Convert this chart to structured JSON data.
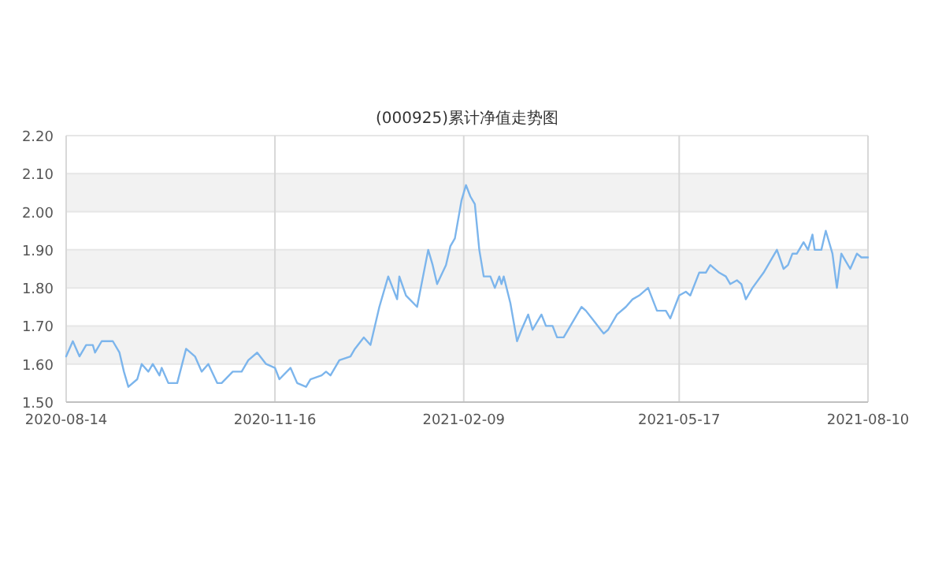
{
  "chart_data": {
    "type": "line",
    "title": "(000925)累计净值走势图",
    "x": [
      "2020-08-14",
      "2020-08-17",
      "2020-08-20",
      "2020-08-23",
      "2020-08-26",
      "2020-08-27",
      "2020-08-30",
      "2020-09-02",
      "2020-09-04",
      "2020-09-07",
      "2020-09-09",
      "2020-09-11",
      "2020-09-15",
      "2020-09-17",
      "2020-09-20",
      "2020-09-22",
      "2020-09-25",
      "2020-09-26",
      "2020-09-29",
      "2020-10-03",
      "2020-10-07",
      "2020-10-11",
      "2020-10-14",
      "2020-10-17",
      "2020-10-21",
      "2020-10-23",
      "2020-10-28",
      "2020-11-01",
      "2020-11-04",
      "2020-11-08",
      "2020-11-12",
      "2020-11-16",
      "2020-11-18",
      "2020-11-23",
      "2020-11-26",
      "2020-11-30",
      "2020-12-02",
      "2020-12-07",
      "2020-12-09",
      "2020-12-11",
      "2020-12-15",
      "2020-12-20",
      "2020-12-22",
      "2020-12-26",
      "2020-12-29",
      "2021-01-02",
      "2021-01-06",
      "2021-01-10",
      "2021-01-11",
      "2021-01-14",
      "2021-01-19",
      "2021-01-24",
      "2021-01-26",
      "2021-01-28",
      "2021-02-01",
      "2021-02-03",
      "2021-02-05",
      "2021-02-08",
      "2021-02-10",
      "2021-02-12",
      "2021-02-14",
      "2021-02-16",
      "2021-02-18",
      "2021-02-21",
      "2021-02-23",
      "2021-02-25",
      "2021-02-26",
      "2021-02-27",
      "2021-03-02",
      "2021-03-05",
      "2021-03-07",
      "2021-03-10",
      "2021-03-12",
      "2021-03-16",
      "2021-03-18",
      "2021-03-21",
      "2021-03-23",
      "2021-03-26",
      "2021-03-30",
      "2021-04-03",
      "2021-04-05",
      "2021-04-09",
      "2021-04-13",
      "2021-04-15",
      "2021-04-19",
      "2021-04-23",
      "2021-04-26",
      "2021-04-29",
      "2021-05-03",
      "2021-05-07",
      "2021-05-11",
      "2021-05-13",
      "2021-05-17",
      "2021-05-20",
      "2021-05-22",
      "2021-05-26",
      "2021-05-29",
      "2021-05-31",
      "2021-06-04",
      "2021-06-07",
      "2021-06-09",
      "2021-06-12",
      "2021-06-14",
      "2021-06-16",
      "2021-06-19",
      "2021-06-24",
      "2021-06-27",
      "2021-06-30",
      "2021-07-03",
      "2021-07-05",
      "2021-07-07",
      "2021-07-09",
      "2021-07-12",
      "2021-07-14",
      "2021-07-16",
      "2021-07-17",
      "2021-07-20",
      "2021-07-22",
      "2021-07-25",
      "2021-07-27",
      "2021-07-29",
      "2021-07-31",
      "2021-08-02",
      "2021-08-05",
      "2021-08-07",
      "2021-08-10"
    ],
    "series": [
      {
        "color": "#7cb5ec",
        "values": [
          1.62,
          1.66,
          1.62,
          1.65,
          1.65,
          1.63,
          1.66,
          1.66,
          1.66,
          1.63,
          1.58,
          1.54,
          1.56,
          1.6,
          1.58,
          1.6,
          1.57,
          1.59,
          1.55,
          1.55,
          1.64,
          1.62,
          1.58,
          1.6,
          1.55,
          1.55,
          1.58,
          1.58,
          1.61,
          1.63,
          1.6,
          1.59,
          1.56,
          1.59,
          1.55,
          1.54,
          1.56,
          1.57,
          1.58,
          1.57,
          1.61,
          1.62,
          1.64,
          1.67,
          1.65,
          1.75,
          1.83,
          1.77,
          1.83,
          1.78,
          1.75,
          1.9,
          1.86,
          1.81,
          1.86,
          1.91,
          1.93,
          2.03,
          2.07,
          2.04,
          2.02,
          1.9,
          1.83,
          1.83,
          1.8,
          1.83,
          1.81,
          1.83,
          1.76,
          1.66,
          1.69,
          1.73,
          1.69,
          1.73,
          1.7,
          1.7,
          1.67,
          1.67,
          1.71,
          1.75,
          1.74,
          1.71,
          1.68,
          1.69,
          1.73,
          1.75,
          1.77,
          1.78,
          1.8,
          1.74,
          1.74,
          1.72,
          1.78,
          1.79,
          1.78,
          1.84,
          1.84,
          1.86,
          1.84,
          1.83,
          1.81,
          1.82,
          1.81,
          1.77,
          1.8,
          1.84,
          1.87,
          1.9,
          1.85,
          1.86,
          1.89,
          1.89,
          1.92,
          1.9,
          1.94,
          1.9,
          1.9,
          1.95,
          1.89,
          1.8,
          1.89,
          1.87,
          1.85,
          1.89,
          1.88,
          1.88
        ]
      }
    ],
    "xlim": [
      "2020-08-14",
      "2021-08-10"
    ],
    "xticks": [
      "2020-08-14",
      "2020-11-16",
      "2021-02-09",
      "2021-05-17",
      "2021-08-10"
    ],
    "ylim": [
      1.5,
      2.2
    ],
    "yticks": [
      {
        "value": 1.5,
        "label": "1.50"
      },
      {
        "value": 1.6,
        "label": "1.60"
      },
      {
        "value": 1.7,
        "label": "1.70"
      },
      {
        "value": 1.8,
        "label": "1.80"
      },
      {
        "value": 1.9,
        "label": "1.90"
      },
      {
        "value": 2.0,
        "label": "2.00"
      },
      {
        "value": 2.1,
        "label": "2.10"
      },
      {
        "value": 2.2,
        "label": "2.20"
      }
    ],
    "bands": [
      {
        "axis": "y",
        "from": 1.6,
        "to": 1.7,
        "color": "#f2f2f2"
      },
      {
        "axis": "y",
        "from": 1.8,
        "to": 1.9,
        "color": "#f2f2f2"
      },
      {
        "axis": "y",
        "from": 2.0,
        "to": 2.1,
        "color": "#f2f2f2"
      }
    ],
    "grid": true
  }
}
